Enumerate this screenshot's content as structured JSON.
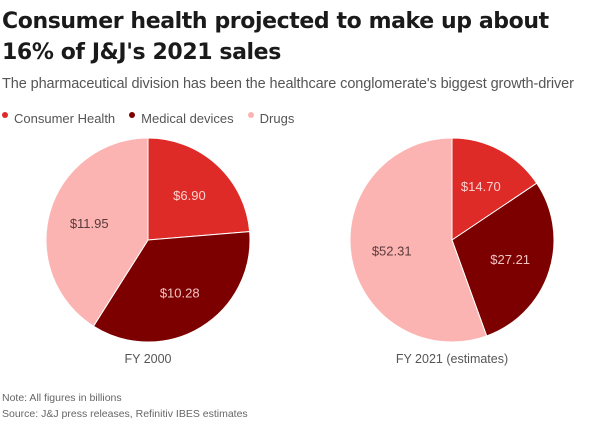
{
  "header": {
    "title": "Consumer health projected to make up about 16% of J&J's 2021 sales",
    "subtitle": "The pharmaceutical division has been the healthcare conglomerate's biggest growth-driver"
  },
  "legend": [
    {
      "label": "Consumer Health",
      "color": "#df2b28"
    },
    {
      "label": "Medical devices",
      "color": "#7d0000"
    },
    {
      "label": "Drugs",
      "color": "#fcb4b2"
    }
  ],
  "footer": {
    "note": "Note: All figures in billions",
    "source": "Source: J&J press releases, Refinitiv IBES estimates"
  },
  "chart_data": [
    {
      "type": "pie",
      "title": "FY 2000",
      "unit": "billions USD",
      "start": "top, clockwise",
      "slices": [
        {
          "name": "Consumer Health",
          "value": 6.9,
          "label": "$6.90",
          "color": "#df2b28",
          "label_color": "#fbd2d0"
        },
        {
          "name": "Medical devices",
          "value": 10.28,
          "label": "$10.28",
          "color": "#7d0000",
          "label_color": "#f2c3c3"
        },
        {
          "name": "Drugs",
          "value": 11.95,
          "label": "$11.95",
          "color": "#fcb4b2",
          "label_color": "#5a3a3a"
        }
      ]
    },
    {
      "type": "pie",
      "title": "FY 2021 (estimates)",
      "unit": "billions USD",
      "start": "top, clockwise",
      "slices": [
        {
          "name": "Consumer Health",
          "value": 14.7,
          "label": "$14.70",
          "color": "#df2b28",
          "label_color": "#fbd2d0"
        },
        {
          "name": "Medical devices",
          "value": 27.21,
          "label": "$27.21",
          "color": "#7d0000",
          "label_color": "#f2c3c3"
        },
        {
          "name": "Drugs",
          "value": 52.31,
          "label": "$52.31",
          "color": "#fcb4b2",
          "label_color": "#5a3a3a"
        }
      ]
    }
  ]
}
